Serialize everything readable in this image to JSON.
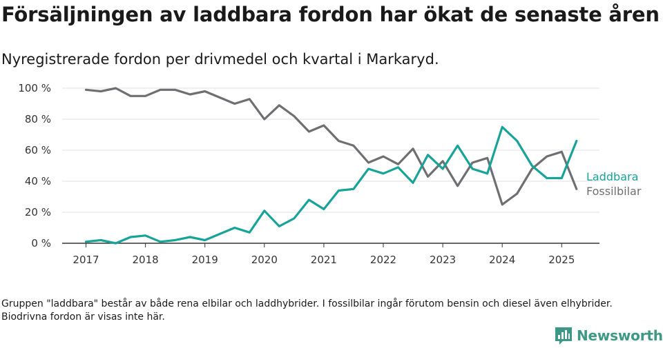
{
  "header": {
    "title": "Försäljningen av laddbara fordon har ökat de senaste åren",
    "subtitle": "Nyregistrerade fordon per drivmedel och kvartal i Markaryd."
  },
  "footnote": "Gruppen \"laddbara\" består av både rena elbilar och laddhybrider. I fossilbilar ingår förutom bensin och diesel även elhybrider. Biodrivna fordon är visas inte här.",
  "logo": {
    "text": "Newsworthy",
    "color": "#3d9985",
    "icon": "bar-chart-logo-icon"
  },
  "chart_data": {
    "type": "line",
    "title": "Försäljningen av laddbara fordon har ökat de senaste åren",
    "subtitle": "Nyregistrerade fordon per drivmedel och kvartal i Markaryd.",
    "xlabel": "",
    "ylabel": "",
    "ylim": [
      0,
      100
    ],
    "yticks": [
      0,
      20,
      40,
      60,
      80,
      100
    ],
    "ytick_labels": [
      "0 %",
      "20 %",
      "40 %",
      "60 %",
      "80 %",
      "100 %"
    ],
    "xlim": [
      2017.0,
      2025.5
    ],
    "xticks": [
      2017,
      2018,
      2019,
      2020,
      2021,
      2022,
      2023,
      2024,
      2025
    ],
    "xtick_labels": [
      "2017",
      "2018",
      "2019",
      "2020",
      "2021",
      "2022",
      "2023",
      "2024",
      "2025"
    ],
    "grid": "horizontal",
    "legend": "direct labels at line ends",
    "x": [
      "2017 Q1",
      "2017 Q2",
      "2017 Q3",
      "2017 Q4",
      "2018 Q1",
      "2018 Q2",
      "2018 Q3",
      "2018 Q4",
      "2019 Q1",
      "2019 Q2",
      "2019 Q3",
      "2019 Q4",
      "2020 Q1",
      "2020 Q2",
      "2020 Q3",
      "2020 Q4",
      "2021 Q1",
      "2021 Q2",
      "2021 Q3",
      "2021 Q4",
      "2022 Q1",
      "2022 Q2",
      "2022 Q3",
      "2022 Q4",
      "2023 Q1",
      "2023 Q2",
      "2023 Q3",
      "2023 Q4",
      "2024 Q1",
      "2024 Q2",
      "2024 Q3",
      "2024 Q4",
      "2025 Q1",
      "2025 Q2"
    ],
    "series": [
      {
        "name": "Laddbara",
        "color": "#17a398",
        "values": [
          1,
          2,
          0,
          4,
          5,
          1,
          2,
          4,
          2,
          6,
          10,
          7,
          21,
          11,
          16,
          28,
          22,
          34,
          35,
          48,
          45,
          49,
          39,
          57,
          48,
          63,
          48,
          45,
          75,
          66,
          50,
          42,
          42,
          66
        ]
      },
      {
        "name": "Fossilbilar",
        "color": "#6f6e72",
        "values": [
          99,
          98,
          100,
          95,
          95,
          99,
          99,
          96,
          98,
          94,
          90,
          93,
          80,
          89,
          82,
          72,
          76,
          66,
          63,
          52,
          56,
          51,
          61,
          43,
          53,
          37,
          52,
          55,
          25,
          32,
          48,
          56,
          59,
          35
        ]
      }
    ]
  }
}
